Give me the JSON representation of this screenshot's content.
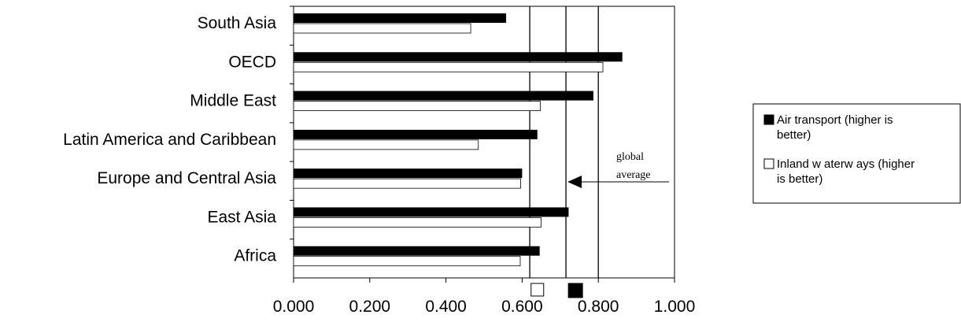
{
  "chart_data": {
    "type": "bar",
    "orientation": "horizontal",
    "categories": [
      "South Asia",
      "OECD",
      "Middle East",
      "Latin America and Caribbean",
      "Europe and Central Asia",
      "East Asia",
      "Africa"
    ],
    "series": [
      {
        "name": "Air transport (higher is better)",
        "color": "#000000",
        "values": [
          0.558,
          0.863,
          0.787,
          0.64,
          0.6,
          0.722,
          0.646
        ]
      },
      {
        "name": "Inland w aterw ays (higher is better)",
        "color": "#ffffff",
        "values": [
          0.465,
          0.812,
          0.648,
          0.485,
          0.596,
          0.65,
          0.595
        ]
      }
    ],
    "xlim": [
      0,
      1.0
    ],
    "x_ticks": [
      "0.000",
      "0.200",
      "0.400",
      "0.600",
      "0.800",
      "1.000"
    ],
    "reference_lines": [
      0.62,
      0.715,
      0.8
    ],
    "global_average": {
      "value": 0.715,
      "label_line1": "global",
      "label_line2": "average"
    },
    "average_markers": [
      {
        "series": "Inland w aterw ays (higher is better)",
        "value": 0.64,
        "color": "#ffffff"
      },
      {
        "series": "Air transport (higher is better)",
        "value": 0.74,
        "color": "#000000"
      }
    ],
    "legend_position": "right"
  },
  "legend": {
    "items": [
      {
        "color": "#000000",
        "line1": "Air transport (higher is",
        "line2": "better)"
      },
      {
        "color": "#ffffff",
        "line1": "Inland w aterw ays (higher",
        "line2": "is better)"
      }
    ]
  }
}
